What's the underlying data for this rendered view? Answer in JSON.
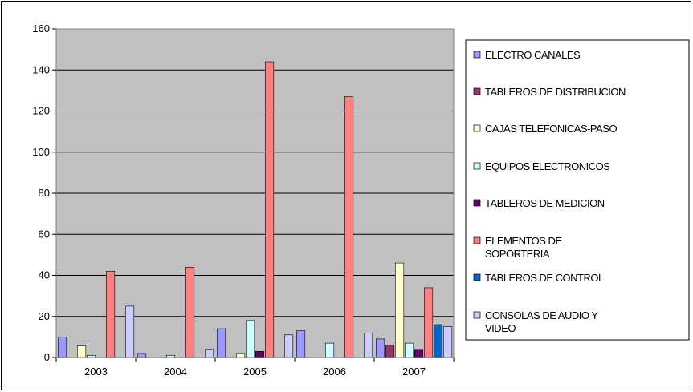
{
  "chart_data": {
    "type": "bar",
    "categories": [
      "2003",
      "2004",
      "2005",
      "2006",
      "2007"
    ],
    "ylim": [
      0,
      160
    ],
    "yticks": [
      0,
      20,
      40,
      60,
      80,
      100,
      120,
      140,
      160
    ],
    "grid": true,
    "legend_position": "right",
    "plot_background": "#c0c0c0",
    "series": [
      {
        "name": "ELECTRO CANALES",
        "name_lines": [
          "ELECTRO CANALES"
        ],
        "color": "#9999ff",
        "values": [
          10,
          2,
          14,
          13,
          9
        ]
      },
      {
        "name": "TABLEROS DE DISTRIBUCION",
        "name_lines": [
          "TABLEROS DE DISTRIBUCION"
        ],
        "color": "#993366",
        "values": [
          0,
          0,
          0,
          0,
          6
        ]
      },
      {
        "name": "CAJAS TELEFONICAS-PASO",
        "name_lines": [
          "CAJAS TELEFONICAS-PASO"
        ],
        "color": "#ffffcc",
        "values": [
          6,
          0,
          2,
          0,
          46
        ]
      },
      {
        "name": "EQUIPOS ELECTRONICOS",
        "name_lines": [
          "EQUIPOS ELECTRONICOS"
        ],
        "color": "#ccffff",
        "values": [
          1,
          1,
          18,
          7,
          7
        ]
      },
      {
        "name": "TABLEROS DE MEDICION",
        "name_lines": [
          "TABLEROS DE MEDICION"
        ],
        "color": "#660066",
        "values": [
          0,
          0,
          3,
          0,
          4
        ]
      },
      {
        "name": "ELEMENTOS DE SOPORTERIA",
        "name_lines": [
          "ELEMENTOS DE",
          "SOPORTERIA"
        ],
        "color": "#ff8080",
        "values": [
          42,
          44,
          144,
          127,
          34
        ]
      },
      {
        "name": "TABLEROS DE CONTROL",
        "name_lines": [
          "TABLEROS DE CONTROL"
        ],
        "color": "#0066cc",
        "values": [
          0,
          0,
          0,
          0,
          16
        ]
      },
      {
        "name": "CONSOLAS DE AUDIO Y VIDEO",
        "name_lines": [
          "CONSOLAS DE AUDIO Y",
          "VIDEO"
        ],
        "color": "#ccccff",
        "values": [
          25,
          4,
          11,
          12,
          15
        ]
      }
    ]
  }
}
